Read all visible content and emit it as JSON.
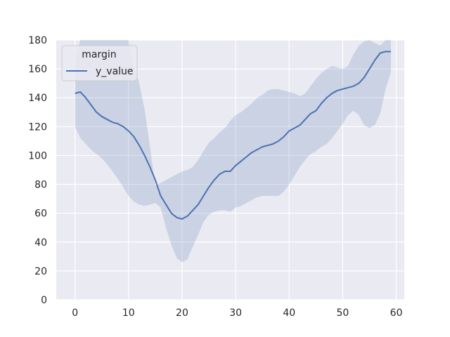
{
  "chart_data": {
    "type": "line",
    "title": "",
    "xlabel": "",
    "ylabel": "",
    "xlim": [
      -3.5,
      61.5
    ],
    "ylim": [
      0,
      180
    ],
    "xticks": [
      0,
      10,
      20,
      30,
      40,
      50,
      60
    ],
    "yticks": [
      0,
      20,
      40,
      60,
      80,
      100,
      120,
      140,
      160,
      180
    ],
    "grid": true,
    "legend": {
      "title": "margin",
      "placement": "top-left"
    },
    "colors": {
      "line": "#4c72b0",
      "band": "#4c72b0",
      "background": "#eaeaf2",
      "grid": "#ffffff"
    },
    "series": [
      {
        "name": "y_value",
        "x": [
          0,
          1,
          2,
          3,
          4,
          5,
          6,
          7,
          8,
          9,
          10,
          11,
          12,
          13,
          14,
          15,
          16,
          17,
          18,
          19,
          20,
          21,
          22,
          23,
          24,
          25,
          26,
          27,
          28,
          29,
          30,
          31,
          32,
          33,
          34,
          35,
          36,
          37,
          38,
          39,
          40,
          41,
          42,
          43,
          44,
          45,
          46,
          47,
          48,
          49,
          50,
          51,
          52,
          53,
          54,
          55,
          56,
          57,
          58,
          59
        ],
        "y": [
          143,
          144,
          140,
          135,
          130,
          127,
          125,
          123,
          122,
          120,
          117,
          113,
          107,
          100,
          92,
          83,
          72,
          66,
          60,
          57,
          56,
          58,
          62,
          66,
          72,
          78,
          83,
          87,
          89,
          89,
          93,
          96,
          99,
          102,
          104,
          106,
          107,
          108,
          110,
          113,
          117,
          119,
          121,
          125,
          129,
          131,
          136,
          140,
          143,
          145,
          146,
          147,
          148,
          150,
          154,
          160,
          166,
          171,
          172,
          172
        ],
        "lower": [
          120,
          112,
          108,
          104,
          101,
          98,
          94,
          89,
          84,
          78,
          72,
          68,
          66,
          65,
          66,
          67,
          64,
          50,
          38,
          29,
          26,
          28,
          37,
          45,
          54,
          59,
          61,
          62,
          62,
          61,
          64,
          65,
          67,
          69,
          71,
          72,
          72,
          72,
          72,
          75,
          80,
          86,
          92,
          97,
          101,
          103,
          106,
          108,
          112,
          117,
          122,
          128,
          131,
          128,
          121,
          119,
          121,
          129,
          146,
          158
        ]
      }
    ],
    "band_upper": {
      "x": [
        0,
        1,
        2,
        3,
        4,
        5,
        6,
        7,
        8,
        9,
        10,
        11,
        12,
        13,
        14,
        15,
        16,
        17,
        18,
        19,
        20,
        21,
        22,
        23,
        24,
        25,
        26,
        27,
        28,
        29,
        30,
        31,
        32,
        33,
        34,
        35,
        36,
        37,
        38,
        39,
        40,
        41,
        42,
        43,
        44,
        45,
        46,
        47,
        48,
        49,
        50,
        51,
        52,
        53,
        54,
        55,
        56,
        57,
        58,
        59
      ],
      "y": [
        167,
        180,
        180,
        180,
        180,
        180,
        180,
        180,
        180,
        180,
        180,
        162,
        150,
        132,
        106,
        79,
        81,
        83,
        85,
        87,
        89,
        90,
        92,
        97,
        103,
        109,
        112,
        116,
        119,
        124,
        128,
        130,
        133,
        136,
        140,
        142,
        145,
        146,
        146,
        145,
        144,
        143,
        141,
        143,
        148,
        153,
        157,
        160,
        162,
        161,
        160,
        162,
        170,
        176,
        179,
        180,
        178,
        176,
        180,
        180
      ]
    }
  },
  "legend_entries": [
    {
      "label": "y_value"
    }
  ]
}
